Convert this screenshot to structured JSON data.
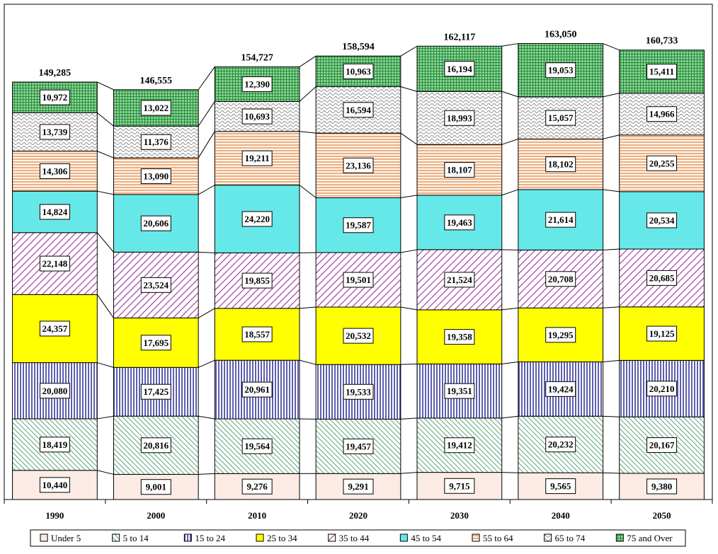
{
  "chart_data": {
    "type": "bar",
    "stacked": true,
    "title": "",
    "xlabel": "",
    "ylabel": "",
    "ylim": [
      0,
      168000
    ],
    "legend_position": "bottom",
    "categories": [
      "1990",
      "2000",
      "2010",
      "2020",
      "2030",
      "2040",
      "2050"
    ],
    "totals": [
      "149,285",
      "146,555",
      "154,727",
      "158,594",
      "162,117",
      "163,050",
      "160,733"
    ],
    "series": [
      {
        "name": "Under 5",
        "color": "#f4c9b8",
        "pattern": "dots",
        "values": [
          10440,
          9001,
          9276,
          9291,
          9715,
          9565,
          9380
        ],
        "labels": [
          "10,440",
          "9,001",
          "9,276",
          "9,291",
          "9,715",
          "9,565",
          "9,380"
        ]
      },
      {
        "name": "5 to 14",
        "color": "#2e8b57",
        "pattern": "diag-fine",
        "values": [
          18419,
          20816,
          19564,
          19457,
          19412,
          20232,
          20167
        ],
        "labels": [
          "18,419",
          "20,816",
          "19,564",
          "19,457",
          "19,412",
          "20,232",
          "20,167"
        ]
      },
      {
        "name": "15 to 24",
        "color": "#1a1a8c",
        "pattern": "vertical",
        "values": [
          20080,
          17425,
          20961,
          19533,
          19351,
          19424,
          20210
        ],
        "labels": [
          "20,080",
          "17,425",
          "20,961",
          "19,533",
          "19,351",
          "19,424",
          "20,210"
        ]
      },
      {
        "name": "25 to 34",
        "color": "#ffff00",
        "pattern": "solid",
        "values": [
          24357,
          17695,
          18557,
          20532,
          19358,
          19295,
          19125
        ],
        "labels": [
          "24,357",
          "17,695",
          "18,557",
          "20,532",
          "19,358",
          "19,295",
          "19,125"
        ]
      },
      {
        "name": "35 to 44",
        "color": "#993399",
        "pattern": "diag-wide",
        "values": [
          22148,
          23524,
          19855,
          19501,
          21524,
          20708,
          20685
        ],
        "labels": [
          "22,148",
          "23,524",
          "19,855",
          "19,501",
          "21,524",
          "20,708",
          "20,685"
        ]
      },
      {
        "name": "45 to 54",
        "color": "#66e8e8",
        "pattern": "solid",
        "values": [
          14824,
          20606,
          24220,
          19587,
          19463,
          21614,
          20534
        ],
        "labels": [
          "14,824",
          "20,606",
          "24,220",
          "19,587",
          "19,463",
          "21,614",
          "20,534"
        ]
      },
      {
        "name": "55 to 64",
        "color": "#e07a2e",
        "pattern": "horizontal",
        "values": [
          14306,
          13090,
          19211,
          23136,
          18107,
          18102,
          20255
        ],
        "labels": [
          "14,306",
          "13,090",
          "19,211",
          "23,136",
          "18,107",
          "18,102",
          "20,255"
        ]
      },
      {
        "name": "65 to 74",
        "color": "#888888",
        "pattern": "wave",
        "values": [
          13739,
          11376,
          10693,
          16594,
          18993,
          15057,
          14966
        ],
        "labels": [
          "13,739",
          "11,376",
          "10,693",
          "16,594",
          "18,993",
          "15,057",
          "14,966"
        ]
      },
      {
        "name": "75 and Over",
        "color": "#1f8f3a",
        "pattern": "grid",
        "values": [
          10972,
          13022,
          12390,
          10963,
          16194,
          19053,
          15411
        ],
        "labels": [
          "10,972",
          "13,022",
          "12,390",
          "10,963",
          "16,194",
          "19,053",
          "15,411"
        ]
      }
    ]
  }
}
